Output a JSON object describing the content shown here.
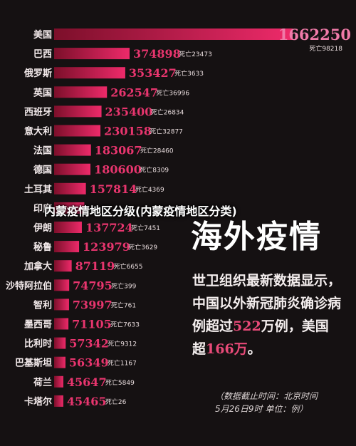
{
  "chart_data": {
    "type": "bar",
    "orientation": "horizontal",
    "death_prefix": "死亡",
    "categories": [
      "美国",
      "巴西",
      "俄罗斯",
      "英国",
      "西班牙",
      "意大利",
      "法国",
      "德国",
      "土耳其",
      "印度",
      "伊朗",
      "秘鲁",
      "加拿大",
      "沙特阿拉伯",
      "智利",
      "墨西哥",
      "比利时",
      "巴基斯坦",
      "荷兰",
      "卡塔尔"
    ],
    "values": [
      1662250,
      374898,
      353427,
      262547,
      235400,
      230158,
      183067,
      180600,
      157814,
      150000,
      137724,
      123979,
      87119,
      74795,
      73997,
      71105,
      57342,
      56349,
      45647,
      45465
    ],
    "deaths": [
      98218,
      23473,
      3633,
      36996,
      26834,
      32877,
      28460,
      8309,
      4369,
      null,
      7451,
      3629,
      6655,
      399,
      761,
      7633,
      9312,
      1167,
      5849,
      26
    ],
    "value_labels": [
      "1662250",
      "374898",
      "353427",
      "262547",
      "235400",
      "230158",
      "183067",
      "180600",
      "157814",
      "",
      "137724",
      "123979",
      "87119",
      "74795",
      "73997",
      "71105",
      "57342",
      "56349",
      "45647",
      "45465"
    ]
  },
  "headline": "内蒙疫情地区分级(内蒙疫情地区分类)",
  "big_title": "海外疫情",
  "description": {
    "part1": "世卫组织最新数据显示，中国以外新冠肺炎确诊病例超过",
    "num1": "522",
    "part2": "万例，美国超",
    "num2": "166万",
    "part3": "。"
  },
  "footnote": {
    "line1": "（数据截止时间：北京时间",
    "line2": "5月26日9时  单位：例）"
  },
  "colors": {
    "background": "#151112",
    "bar_start": "#7c0f2a",
    "bar_end": "#ee2a6a",
    "value_top": "#f07aa8",
    "value_text": "#e8356e",
    "highlight": "#e84a78"
  }
}
